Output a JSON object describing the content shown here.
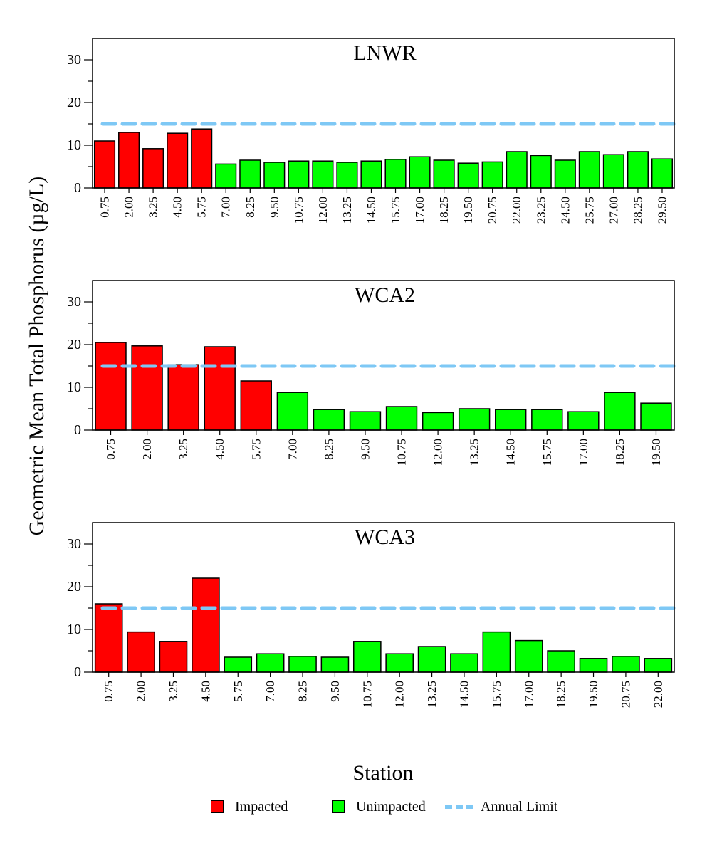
{
  "chart_data": [
    {
      "type": "bar",
      "title": "LNWR",
      "categories": [
        "0.75",
        "2.00",
        "3.25",
        "4.50",
        "5.75",
        "7.00",
        "8.25",
        "9.50",
        "10.75",
        "12.00",
        "13.25",
        "14.50",
        "15.75",
        "17.00",
        "18.25",
        "19.50",
        "20.75",
        "22.00",
        "23.25",
        "24.50",
        "25.75",
        "27.00",
        "28.25",
        "29.50"
      ],
      "values": [
        11.0,
        13.0,
        9.2,
        12.8,
        13.8,
        5.6,
        6.5,
        6.0,
        6.3,
        6.3,
        6.0,
        6.3,
        6.7,
        7.3,
        6.5,
        5.8,
        6.1,
        8.5,
        7.6,
        6.5,
        8.5,
        7.8,
        8.5,
        6.8
      ],
      "impacted": [
        true,
        true,
        true,
        true,
        true,
        false,
        false,
        false,
        false,
        false,
        false,
        false,
        false,
        false,
        false,
        false,
        false,
        false,
        false,
        false,
        false,
        false,
        false,
        false
      ],
      "ylim": [
        0,
        35
      ],
      "yticks": [
        0,
        10,
        20,
        30
      ],
      "limit": 15
    },
    {
      "type": "bar",
      "title": "WCA2",
      "categories": [
        "0.75",
        "2.00",
        "3.25",
        "4.50",
        "5.75",
        "7.00",
        "8.25",
        "9.50",
        "10.75",
        "12.00",
        "13.25",
        "14.50",
        "15.75",
        "17.00",
        "18.25",
        "19.50"
      ],
      "values": [
        20.5,
        19.7,
        15.3,
        19.5,
        11.5,
        8.8,
        4.8,
        4.3,
        5.5,
        4.1,
        5.0,
        4.8,
        4.8,
        4.3,
        8.8,
        6.3
      ],
      "impacted": [
        true,
        true,
        true,
        true,
        true,
        false,
        false,
        false,
        false,
        false,
        false,
        false,
        false,
        false,
        false,
        false
      ],
      "ylim": [
        0,
        35
      ],
      "yticks": [
        0,
        10,
        20,
        30
      ],
      "limit": 15
    },
    {
      "type": "bar",
      "title": "WCA3",
      "categories": [
        "0.75",
        "2.00",
        "3.25",
        "4.50",
        "5.75",
        "7.00",
        "8.25",
        "9.50",
        "10.75",
        "12.00",
        "13.25",
        "14.50",
        "15.75",
        "17.00",
        "18.25",
        "19.50",
        "20.75",
        "22.00"
      ],
      "values": [
        16.0,
        9.4,
        7.2,
        22.0,
        3.5,
        4.3,
        3.7,
        3.5,
        7.2,
        4.3,
        6.0,
        4.3,
        9.4,
        7.4,
        5.0,
        3.2,
        3.7,
        3.2
      ],
      "impacted": [
        true,
        true,
        true,
        true,
        false,
        false,
        false,
        false,
        false,
        false,
        false,
        false,
        false,
        false,
        false,
        false,
        false,
        false
      ],
      "ylim": [
        0,
        35
      ],
      "yticks": [
        0,
        10,
        20,
        30
      ],
      "limit": 15
    }
  ],
  "ylabel": "Geometric Mean Total Phosphorus (µg/L)",
  "xlabel": "Station",
  "legend": {
    "impacted": "Impacted",
    "unimpacted": "Unimpacted",
    "limit": "Annual Limit"
  },
  "colors": {
    "impacted": "#ff0000",
    "unimpacted": "#00ff00",
    "limit": "#7ec8f5",
    "axis": "#000000"
  }
}
